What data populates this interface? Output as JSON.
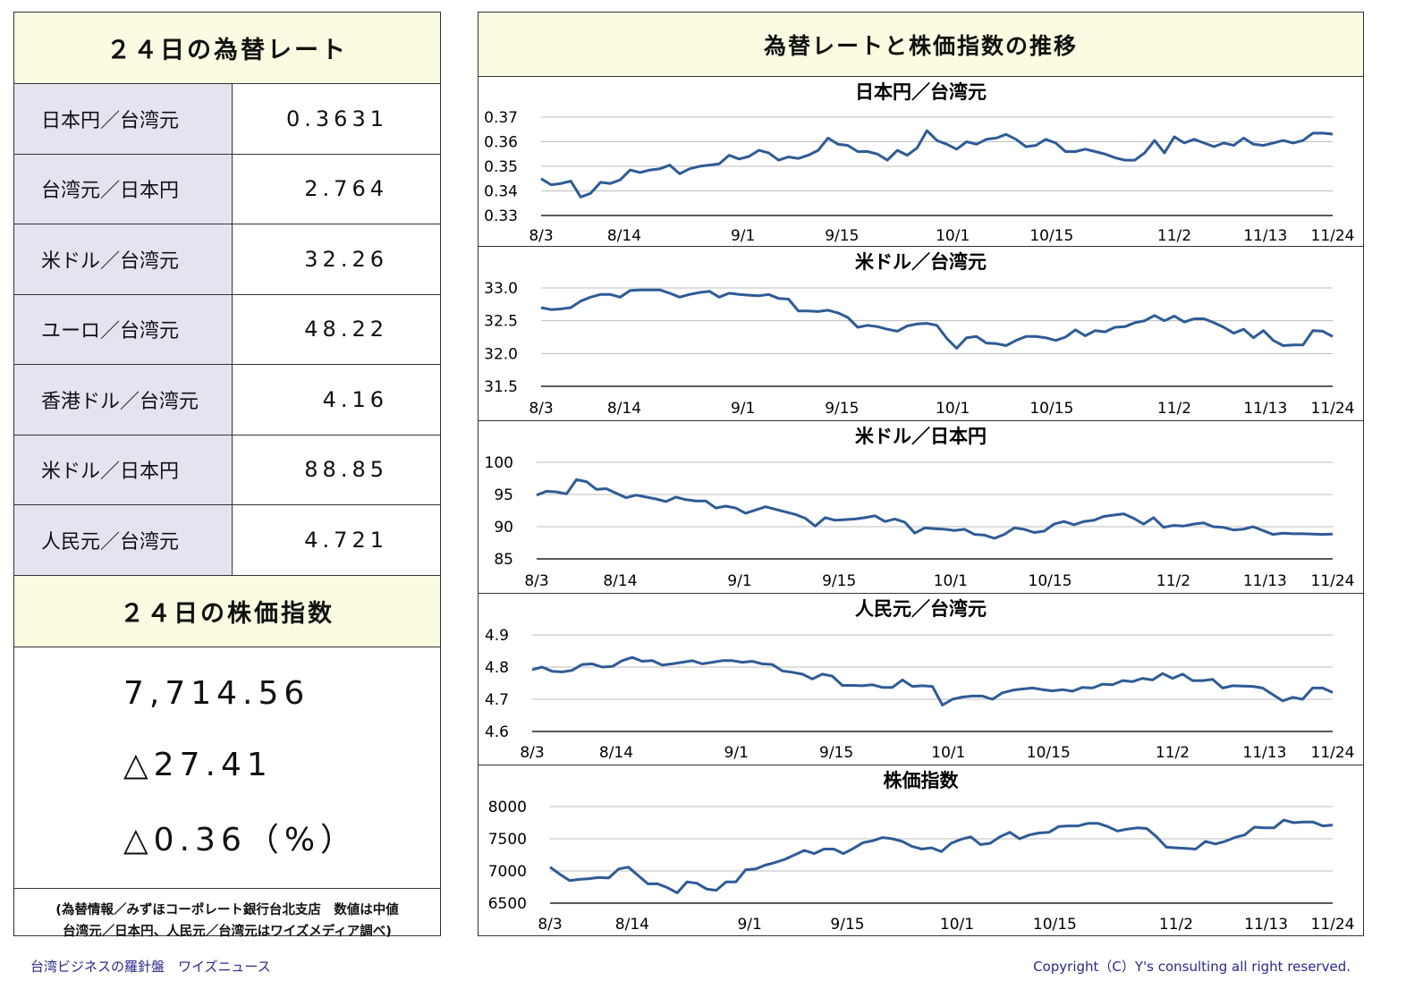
{
  "left": {
    "rates_title": "２４日の為替レート",
    "rates": [
      {
        "label": "日本円／台湾元",
        "value": "0.3631"
      },
      {
        "label": "台湾元／日本円",
        "value": "2.764"
      },
      {
        "label": "米ドル／台湾元",
        "value": "32.26"
      },
      {
        "label": "ユーロ／台湾元",
        "value": "48.22"
      },
      {
        "label": "香港ドル／台湾元",
        "value": "4.16"
      },
      {
        "label": "米ドル／日本円",
        "value": "88.85"
      },
      {
        "label": "人民元／台湾元",
        "value": "4.721"
      }
    ],
    "stock_title": "２４日の株価指数",
    "stock_index": "7,714.56",
    "stock_change": "△27.41",
    "stock_change_pct": "△0.36（%）",
    "note_line1": "(為替情報／みずほコーポレート銀行台北支店　数値は中値",
    "note_line2": "台湾元／日本円、人民元／台湾元はワイズメディア調べ)"
  },
  "right": {
    "title": "為替レートと株価指数の推移"
  },
  "chart_data": [
    {
      "type": "line",
      "title": "日本円／台湾元",
      "x_ticks": [
        "8/3",
        "8/14",
        "9/1",
        "9/15",
        "10/1",
        "10/15",
        "11/2",
        "11/13",
        "11/24"
      ],
      "y_ticks": [
        "0.37",
        "0.36",
        "0.35",
        "0.34",
        "0.33"
      ],
      "ylim": [
        0.33,
        0.37
      ],
      "color": "#2e5b96",
      "values": [
        0.345,
        0.3425,
        0.343,
        0.344,
        0.3375,
        0.339,
        0.3435,
        0.343,
        0.3445,
        0.3485,
        0.3475,
        0.3485,
        0.349,
        0.3505,
        0.347,
        0.349,
        0.35,
        0.3505,
        0.351,
        0.3545,
        0.353,
        0.354,
        0.3565,
        0.3555,
        0.3525,
        0.3538,
        0.3532,
        0.3545,
        0.3565,
        0.3615,
        0.359,
        0.3585,
        0.356,
        0.356,
        0.355,
        0.3525,
        0.3565,
        0.3545,
        0.3575,
        0.3645,
        0.3605,
        0.359,
        0.357,
        0.36,
        0.359,
        0.361,
        0.3615,
        0.363,
        0.361,
        0.358,
        0.3585,
        0.361,
        0.3595,
        0.356,
        0.356,
        0.357,
        0.356,
        0.355,
        0.3535,
        0.3525,
        0.3525,
        0.3555,
        0.3605,
        0.3555,
        0.362,
        0.3595,
        0.361,
        0.3595,
        0.358,
        0.3595,
        0.3585,
        0.3615,
        0.359,
        0.3585,
        0.3595,
        0.3605,
        0.3595,
        0.3605,
        0.3635,
        0.3635,
        0.3631
      ]
    },
    {
      "type": "line",
      "title": "米ドル／台湾元",
      "x_ticks": [
        "8/3",
        "8/14",
        "9/1",
        "9/15",
        "10/1",
        "10/15",
        "11/2",
        "11/13",
        "11/24"
      ],
      "y_ticks": [
        "33.0",
        "32.5",
        "32.0",
        "31.5"
      ],
      "ylim": [
        31.5,
        33.0
      ],
      "color": "#2e5b96",
      "values": [
        32.7,
        32.67,
        32.68,
        32.7,
        32.8,
        32.86,
        32.9,
        32.9,
        32.86,
        32.96,
        32.97,
        32.97,
        32.97,
        32.92,
        32.86,
        32.9,
        32.93,
        32.95,
        32.86,
        32.92,
        32.9,
        32.89,
        32.88,
        32.9,
        32.84,
        32.83,
        32.65,
        32.65,
        32.64,
        32.66,
        32.62,
        32.55,
        32.4,
        32.43,
        32.41,
        32.37,
        32.34,
        32.42,
        32.45,
        32.46,
        32.43,
        32.23,
        32.08,
        32.24,
        32.26,
        32.16,
        32.15,
        32.12,
        32.2,
        32.26,
        32.26,
        32.24,
        32.2,
        32.25,
        32.36,
        32.27,
        32.35,
        32.33,
        32.4,
        32.41,
        32.47,
        32.5,
        32.58,
        32.5,
        32.57,
        32.48,
        32.53,
        32.53,
        32.47,
        32.4,
        32.31,
        32.37,
        32.24,
        32.35,
        32.2,
        32.12,
        32.13,
        32.13,
        32.35,
        32.34,
        32.26
      ]
    },
    {
      "type": "line",
      "title": "米ドル／日本円",
      "x_ticks": [
        "8/3",
        "8/14",
        "9/1",
        "9/15",
        "10/1",
        "10/15",
        "11/2",
        "11/13",
        "11/24"
      ],
      "y_ticks": [
        "100",
        "95",
        "90",
        "85"
      ],
      "ylim": [
        85,
        100
      ],
      "color": "#2e5b96",
      "values": [
        94.9,
        95.5,
        95.4,
        95.1,
        97.3,
        97.0,
        95.8,
        95.9,
        95.2,
        94.5,
        94.9,
        94.6,
        94.3,
        93.9,
        94.6,
        94.2,
        94.0,
        94.0,
        92.9,
        93.2,
        92.9,
        92.1,
        92.6,
        93.1,
        92.7,
        92.3,
        91.9,
        91.3,
        90.1,
        91.4,
        91.0,
        91.1,
        91.2,
        91.4,
        91.7,
        90.8,
        91.2,
        90.7,
        89.0,
        89.8,
        89.7,
        89.6,
        89.4,
        89.6,
        88.8,
        88.7,
        88.2,
        88.8,
        89.8,
        89.6,
        89.1,
        89.3,
        90.4,
        90.8,
        90.3,
        90.8,
        91.0,
        91.6,
        91.8,
        92.0,
        91.3,
        90.4,
        91.4,
        89.9,
        90.2,
        90.1,
        90.4,
        90.6,
        90.0,
        89.9,
        89.5,
        89.6,
        90.0,
        89.4,
        88.8,
        89.0,
        88.9,
        88.9,
        88.85,
        88.8,
        88.85
      ]
    },
    {
      "type": "line",
      "title": "人民元／台湾元",
      "x_ticks": [
        "8/3",
        "8/14",
        "9/1",
        "9/15",
        "10/1",
        "10/15",
        "11/2",
        "11/13",
        "11/24"
      ],
      "y_ticks": [
        "4.9",
        "4.8",
        "4.7",
        "4.6"
      ],
      "ylim": [
        4.6,
        4.9
      ],
      "color": "#2e5b96",
      "values": [
        4.792,
        4.8,
        4.787,
        4.785,
        4.79,
        4.808,
        4.81,
        4.8,
        4.802,
        4.82,
        4.83,
        4.818,
        4.82,
        4.806,
        4.81,
        4.815,
        4.82,
        4.81,
        4.815,
        4.82,
        4.82,
        4.815,
        4.818,
        4.81,
        4.808,
        4.788,
        4.784,
        4.778,
        4.763,
        4.778,
        4.772,
        4.743,
        4.743,
        4.742,
        4.745,
        4.737,
        4.737,
        4.76,
        4.74,
        4.742,
        4.74,
        4.682,
        4.7,
        4.707,
        4.71,
        4.71,
        4.7,
        4.72,
        4.728,
        4.732,
        4.735,
        4.73,
        4.726,
        4.73,
        4.725,
        4.737,
        4.735,
        4.747,
        4.745,
        4.758,
        4.755,
        4.765,
        4.76,
        4.78,
        4.765,
        4.778,
        4.758,
        4.758,
        4.762,
        4.735,
        4.742,
        4.741,
        4.74,
        4.735,
        4.715,
        4.695,
        4.706,
        4.7,
        4.735,
        4.735,
        4.721
      ]
    },
    {
      "type": "line",
      "title": "株価指数",
      "x_ticks": [
        "8/3",
        "8/14",
        "9/1",
        "9/15",
        "10/1",
        "10/15",
        "11/2",
        "11/13",
        "11/24"
      ],
      "y_ticks": [
        "8000",
        "7500",
        "7000",
        "6500"
      ],
      "ylim": [
        6500,
        8000
      ],
      "color": "#2e5b96",
      "values": [
        7060,
        6950,
        6850,
        6870,
        6880,
        6900,
        6890,
        7030,
        7060,
        6930,
        6800,
        6800,
        6740,
        6660,
        6830,
        6810,
        6720,
        6700,
        6830,
        6830,
        7020,
        7030,
        7090,
        7130,
        7180,
        7250,
        7320,
        7270,
        7340,
        7340,
        7270,
        7350,
        7440,
        7470,
        7520,
        7500,
        7460,
        7380,
        7340,
        7360,
        7300,
        7430,
        7490,
        7530,
        7410,
        7430,
        7530,
        7600,
        7500,
        7560,
        7590,
        7600,
        7690,
        7700,
        7700,
        7740,
        7740,
        7690,
        7620,
        7650,
        7670,
        7660,
        7530,
        7370,
        7360,
        7350,
        7340,
        7460,
        7420,
        7460,
        7520,
        7560,
        7680,
        7670,
        7670,
        7790,
        7750,
        7760,
        7760,
        7700,
        7714.56
      ]
    }
  ],
  "footer": {
    "left": "台湾ビジネスの羅針盤　ワイズニュース",
    "right": "Copyright（C）Y's consulting all right reserved."
  }
}
